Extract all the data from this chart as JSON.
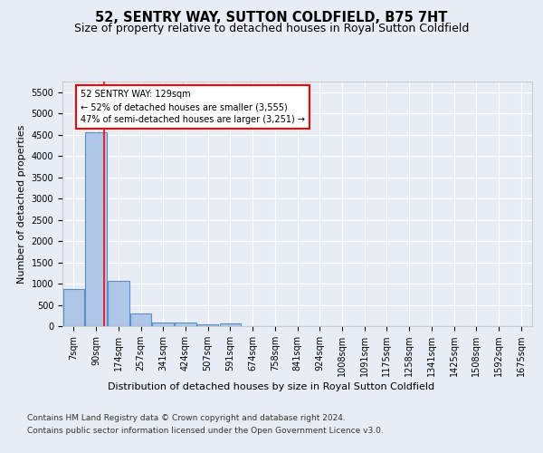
{
  "title1": "52, SENTRY WAY, SUTTON COLDFIELD, B75 7HT",
  "title2": "Size of property relative to detached houses in Royal Sutton Coldfield",
  "xlabel": "Distribution of detached houses by size in Royal Sutton Coldfield",
  "ylabel": "Number of detached properties",
  "footnote1": "Contains HM Land Registry data © Crown copyright and database right 2024.",
  "footnote2": "Contains public sector information licensed under the Open Government Licence v3.0.",
  "bar_labels": [
    "7sqm",
    "90sqm",
    "174sqm",
    "257sqm",
    "341sqm",
    "424sqm",
    "507sqm",
    "591sqm",
    "674sqm",
    "758sqm",
    "841sqm",
    "924sqm",
    "1008sqm",
    "1091sqm",
    "1175sqm",
    "1258sqm",
    "1341sqm",
    "1425sqm",
    "1508sqm",
    "1592sqm",
    "1675sqm"
  ],
  "bar_values": [
    880,
    4560,
    1060,
    290,
    90,
    80,
    50,
    55,
    0,
    0,
    0,
    0,
    0,
    0,
    0,
    0,
    0,
    0,
    0,
    0,
    0
  ],
  "bar_color": "#aec6e8",
  "bar_edge_color": "#5a8fc2",
  "bar_edge_width": 0.8,
  "background_color": "#e8edf5",
  "grid_color": "#ffffff",
  "ylim_max": 5750,
  "yticks": [
    0,
    500,
    1000,
    1500,
    2000,
    2500,
    3000,
    3500,
    4000,
    4500,
    5000,
    5500
  ],
  "red_line_x": 1.38,
  "annotation_text": "52 SENTRY WAY: 129sqm\n← 52% of detached houses are smaller (3,555)\n47% of semi-detached houses are larger (3,251) →",
  "title1_fontsize": 10.5,
  "title2_fontsize": 9,
  "tick_fontsize": 7,
  "ylabel_fontsize": 8,
  "xlabel_fontsize": 8,
  "footnote_fontsize": 6.5
}
